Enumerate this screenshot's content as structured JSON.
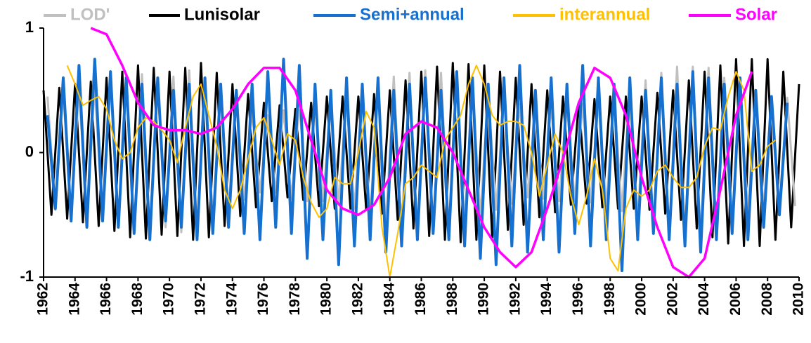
{
  "chart_data": {
    "type": "line",
    "xlim": [
      1962,
      2010
    ],
    "ylim": [
      -1,
      1
    ],
    "xticks": [
      1962,
      1964,
      1966,
      1968,
      1970,
      1972,
      1974,
      1976,
      1978,
      1980,
      1982,
      1984,
      1986,
      1988,
      1990,
      1992,
      1994,
      1996,
      1998,
      2000,
      2002,
      2004,
      2006,
      2008,
      2010
    ],
    "yticks": [
      -1,
      0,
      1
    ],
    "grid": false,
    "legend": "top",
    "series": [
      {
        "name": "LOD'",
        "color": "#c0c0c0",
        "x": [
          1962.25,
          1962.75,
          1963.25,
          1963.75,
          1964.25,
          1964.75,
          1965.25,
          1965.75,
          1966.25,
          1966.75,
          1967.25,
          1967.75,
          1968.25,
          1968.75,
          1969.25,
          1969.75,
          1970.25,
          1970.75,
          1971.25,
          1971.75,
          1972.25,
          1972.75,
          1973.25,
          1973.75,
          1974.25,
          1974.75,
          1975.25,
          1975.75,
          1976.25,
          1976.75,
          1977.25,
          1977.75,
          1978.25,
          1978.75,
          1979.25,
          1979.75,
          1980.25,
          1980.75,
          1981.25,
          1981.75,
          1982.25,
          1982.75,
          1983.25,
          1983.75,
          1984.25,
          1984.75,
          1985.25,
          1985.75,
          1986.25,
          1986.75,
          1987.25,
          1987.75,
          1988.25,
          1988.75,
          1989.25,
          1989.75,
          1990.25,
          1990.75,
          1991.25,
          1991.75,
          1992.25,
          1992.75,
          1993.25,
          1993.75,
          1994.25,
          1994.75,
          1995.25,
          1995.75,
          1996.25,
          1996.75,
          1997.25,
          1997.75,
          1998.25,
          1998.75,
          1999.25,
          1999.75,
          2000.25,
          2000.75,
          2001.25,
          2001.75,
          2002.25,
          2002.75,
          2003.25,
          2003.75,
          2004.25,
          2004.75,
          2005.25,
          2005.75,
          2006.25,
          2006.75,
          2007.25,
          2007.75,
          2008.25,
          2008.75,
          2009.25,
          2009.75
        ],
        "values": [
          0.45,
          -0.46,
          0.48,
          -0.49,
          0.51,
          -0.52,
          0.53,
          -0.55,
          0.56,
          -0.59,
          0.61,
          -0.64,
          0.63,
          -0.62,
          0.6,
          -0.6,
          0.61,
          -0.64,
          0.66,
          -0.63,
          0.58,
          -0.53,
          0.49,
          -0.45,
          0.41,
          -0.38,
          0.33,
          -0.32,
          0.3,
          -0.32,
          0.34,
          -0.37,
          0.39,
          -0.39,
          0.39,
          -0.39,
          0.4,
          -0.41,
          0.43,
          -0.45,
          0.48,
          -0.52,
          0.55,
          -0.6,
          0.61,
          -0.63,
          0.64,
          -0.66,
          0.66,
          -0.65,
          0.64,
          -0.62,
          0.6,
          -0.57,
          0.54,
          -0.52,
          0.49,
          -0.46,
          0.44,
          -0.41,
          0.39,
          -0.36,
          0.35,
          -0.37,
          0.38,
          -0.39,
          0.39,
          -0.39,
          0.39,
          -0.4,
          0.41,
          -0.43,
          0.44,
          -0.47,
          0.52,
          -0.55,
          0.58,
          -0.62,
          0.64,
          -0.67,
          0.69,
          -0.69,
          0.69,
          -0.69,
          0.68,
          -0.65,
          0.6,
          -0.55,
          0.5,
          -0.48,
          0.47,
          -0.46,
          0.45,
          -0.44,
          0.44,
          -0.43
        ]
      },
      {
        "name": "Lunisolar",
        "color": "#000000",
        "x": [
          1962,
          1962.5,
          1963,
          1963.5,
          1964,
          1964.5,
          1965,
          1965.5,
          1966,
          1966.5,
          1967,
          1967.5,
          1968,
          1968.5,
          1969,
          1969.5,
          1970,
          1970.5,
          1971,
          1971.5,
          1972,
          1972.5,
          1973,
          1973.5,
          1974,
          1974.5,
          1975,
          1975.5,
          1976,
          1976.5,
          1977,
          1977.5,
          1978,
          1978.5,
          1979,
          1979.5,
          1980,
          1980.5,
          1981,
          1981.5,
          1982,
          1982.5,
          1983,
          1983.5,
          1984,
          1984.5,
          1985,
          1985.5,
          1986,
          1986.5,
          1987,
          1987.5,
          1988,
          1988.5,
          1989,
          1989.5,
          1990,
          1990.5,
          1991,
          1991.5,
          1992,
          1992.5,
          1993,
          1993.5,
          1994,
          1994.5,
          1995,
          1995.5,
          1996,
          1996.5,
          1997,
          1997.5,
          1998,
          1998.5,
          1999,
          1999.5,
          2000,
          2000.5,
          2001,
          2001.5,
          2002,
          2002.5,
          2003,
          2003.5,
          2004,
          2004.5,
          2005,
          2005.5,
          2006,
          2006.5,
          2007,
          2007.5,
          2008,
          2008.5,
          2009,
          2009.5,
          2010
        ],
        "values": [
          0.5,
          -0.5,
          0.52,
          -0.53,
          0.55,
          -0.56,
          0.57,
          -0.59,
          0.6,
          -0.63,
          0.65,
          -0.68,
          0.7,
          -0.69,
          0.68,
          -0.66,
          0.65,
          -0.67,
          0.68,
          -0.7,
          0.72,
          -0.68,
          0.64,
          -0.59,
          0.55,
          -0.51,
          0.47,
          -0.44,
          0.4,
          -0.39,
          0.38,
          -0.36,
          0.35,
          -0.38,
          0.4,
          -0.43,
          0.45,
          -0.45,
          0.45,
          -0.45,
          0.45,
          -0.46,
          0.47,
          -0.49,
          0.5,
          -0.54,
          0.58,
          -0.61,
          0.65,
          -0.67,
          0.69,
          -0.7,
          0.72,
          -0.72,
          0.71,
          -0.7,
          0.7,
          -0.68,
          0.65,
          -0.62,
          0.6,
          -0.58,
          0.55,
          -0.52,
          0.5,
          -0.48,
          0.45,
          -0.42,
          0.4,
          -0.41,
          0.43,
          -0.44,
          0.45,
          -0.45,
          0.45,
          -0.45,
          0.45,
          -0.46,
          0.48,
          -0.49,
          0.5,
          -0.54,
          0.58,
          -0.61,
          0.65,
          -0.68,
          0.7,
          -0.73,
          0.75,
          -0.75,
          0.75,
          -0.75,
          0.75,
          -0.7,
          0.65,
          -0.6,
          0.55
        ]
      },
      {
        "name": "Semi+annual",
        "color": "#1570d0",
        "x": [
          1962.25,
          1962.75,
          1963.25,
          1963.75,
          1964.25,
          1964.75,
          1965.25,
          1965.75,
          1966.25,
          1966.75,
          1967.25,
          1967.75,
          1968.25,
          1968.75,
          1969.25,
          1969.75,
          1970.25,
          1970.75,
          1971.25,
          1971.75,
          1972.25,
          1972.75,
          1973.25,
          1973.75,
          1974.25,
          1974.75,
          1975.25,
          1975.75,
          1976.25,
          1976.75,
          1977.25,
          1977.75,
          1978.25,
          1978.75,
          1979.25,
          1979.75,
          1980.25,
          1980.75,
          1981.25,
          1981.75,
          1982.25,
          1982.75,
          1983.25,
          1983.75,
          1984.25,
          1984.75,
          1985.25,
          1985.75,
          1986.25,
          1986.75,
          1987.25,
          1987.75,
          1988.25,
          1988.75,
          1989.25,
          1989.75,
          1990.25,
          1990.75,
          1991.25,
          1991.75,
          1992.25,
          1992.75,
          1993.25,
          1993.75,
          1994.25,
          1994.75,
          1995.25,
          1995.75,
          1996.25,
          1996.75,
          1997.25,
          1997.75,
          1998.25,
          1998.75,
          1999.25,
          1999.75,
          2000.25,
          2000.75,
          2001.25,
          2001.75,
          2002.25,
          2002.75,
          2003.25,
          2003.75,
          2004.25,
          2004.75,
          2005.25,
          2005.75,
          2006.25,
          2006.75,
          2007.25,
          2007.75,
          2008.25,
          2008.75,
          2009.25
        ],
        "values": [
          0.3,
          -0.45,
          0.6,
          -0.55,
          0.7,
          -0.6,
          0.75,
          -0.55,
          0.65,
          -0.6,
          0.6,
          -0.65,
          0.55,
          -0.7,
          0.6,
          -0.55,
          0.5,
          -0.6,
          0.55,
          -0.7,
          0.6,
          -0.65,
          0.55,
          -0.6,
          0.5,
          -0.65,
          0.55,
          -0.7,
          0.65,
          -0.6,
          0.75,
          -0.65,
          0.7,
          -0.85,
          0.55,
          -0.7,
          0.5,
          -0.9,
          0.6,
          -0.75,
          0.55,
          -0.7,
          0.6,
          -0.8,
          0.5,
          -0.75,
          0.55,
          -0.7,
          0.6,
          -0.65,
          0.5,
          -0.7,
          0.65,
          -0.75,
          0.6,
          -0.85,
          0.55,
          -0.9,
          0.6,
          -0.75,
          0.7,
          -0.8,
          0.5,
          -0.7,
          0.6,
          -0.8,
          0.55,
          -0.65,
          0.7,
          -0.75,
          0.6,
          -0.7,
          0.55,
          -0.95,
          0.6,
          -0.7,
          0.5,
          -0.65,
          0.6,
          -0.7,
          0.55,
          -0.75,
          0.65,
          -0.8,
          0.6,
          -0.7,
          0.55,
          -0.65,
          0.6,
          -0.7,
          0.5,
          -0.6,
          0.45,
          -0.5,
          0.4
        ]
      },
      {
        "name": "interannual",
        "color": "#ffc000",
        "x": [
          1963.5,
          1964,
          1964.5,
          1965,
          1965.5,
          1966,
          1966.5,
          1967,
          1967.5,
          1968,
          1968.5,
          1969,
          1969.5,
          1970,
          1970.5,
          1971,
          1971.5,
          1972,
          1972.5,
          1973,
          1973.5,
          1974,
          1974.5,
          1975,
          1975.5,
          1976,
          1976.5,
          1977,
          1977.5,
          1978,
          1978.5,
          1979,
          1979.5,
          1980,
          1980.5,
          1981,
          1981.5,
          1982,
          1982.5,
          1983,
          1983.5,
          1984,
          1984.5,
          1985,
          1985.5,
          1986,
          1986.5,
          1987,
          1987.5,
          1988,
          1988.5,
          1989,
          1989.5,
          1990,
          1990.5,
          1991,
          1991.5,
          1992,
          1992.5,
          1993,
          1993.5,
          1994,
          1994.5,
          1995,
          1995.5,
          1996,
          1996.5,
          1997,
          1997.5,
          1998,
          1998.5,
          1999,
          1999.5,
          2000,
          2000.5,
          2001,
          2001.5,
          2002,
          2002.5,
          2003,
          2003.5,
          2004,
          2004.5,
          2005,
          2005.5,
          2006,
          2006.5,
          2007,
          2007.5,
          2008,
          2008.5
        ],
        "values": [
          0.7,
          0.55,
          0.38,
          0.42,
          0.45,
          0.35,
          0.1,
          -0.05,
          0,
          0.2,
          0.28,
          0.25,
          0.18,
          0.1,
          -0.08,
          0.2,
          0.45,
          0.55,
          0.3,
          0.05,
          -0.3,
          -0.45,
          -0.3,
          -0.05,
          0.2,
          0.28,
          0.1,
          -0.1,
          0.15,
          0.1,
          -0.2,
          -0.4,
          -0.52,
          -0.45,
          -0.2,
          -0.25,
          -0.25,
          0,
          0.33,
          0.2,
          -0.6,
          -1,
          -0.65,
          -0.25,
          -0.2,
          -0.1,
          -0.15,
          -0.2,
          0.1,
          0.2,
          0.3,
          0.55,
          0.7,
          0.55,
          0.3,
          0.22,
          0.25,
          0.25,
          0.22,
          0,
          -0.35,
          -0.1,
          0.15,
          0,
          -0.35,
          -0.58,
          -0.35,
          -0.05,
          -0.3,
          -0.85,
          -0.95,
          -0.45,
          -0.3,
          -0.35,
          -0.3,
          -0.15,
          -0.1,
          -0.2,
          -0.28,
          -0.28,
          -0.2,
          0.05,
          0.2,
          0.18,
          0.45,
          0.65,
          0.5,
          -0.15,
          -0.1,
          0.05,
          0.1
        ]
      },
      {
        "name": "Solar",
        "color": "#ff00ff",
        "x": [
          1965,
          1966,
          1967,
          1968,
          1969,
          1970,
          1971,
          1972,
          1973,
          1974,
          1975,
          1976,
          1977,
          1978,
          1979,
          1980,
          1981,
          1982,
          1983,
          1984,
          1985,
          1986,
          1987,
          1988,
          1989,
          1990,
          1991,
          1992,
          1993,
          1994,
          1995,
          1996,
          1997,
          1998,
          1999,
          2000,
          2001,
          2002,
          2003,
          2004,
          2005,
          2006,
          2007
        ],
        "values": [
          1,
          0.95,
          0.7,
          0.4,
          0.22,
          0.18,
          0.18,
          0.15,
          0.2,
          0.35,
          0.55,
          0.68,
          0.68,
          0.5,
          0.1,
          -0.3,
          -0.45,
          -0.5,
          -0.42,
          -0.2,
          0.15,
          0.25,
          0.2,
          0,
          -0.3,
          -0.6,
          -0.8,
          -0.92,
          -0.8,
          -0.45,
          -0.05,
          0.4,
          0.68,
          0.6,
          0.3,
          -0.2,
          -0.6,
          -0.92,
          -1,
          -0.85,
          -0.3,
          0.3,
          0.65
        ]
      }
    ]
  }
}
